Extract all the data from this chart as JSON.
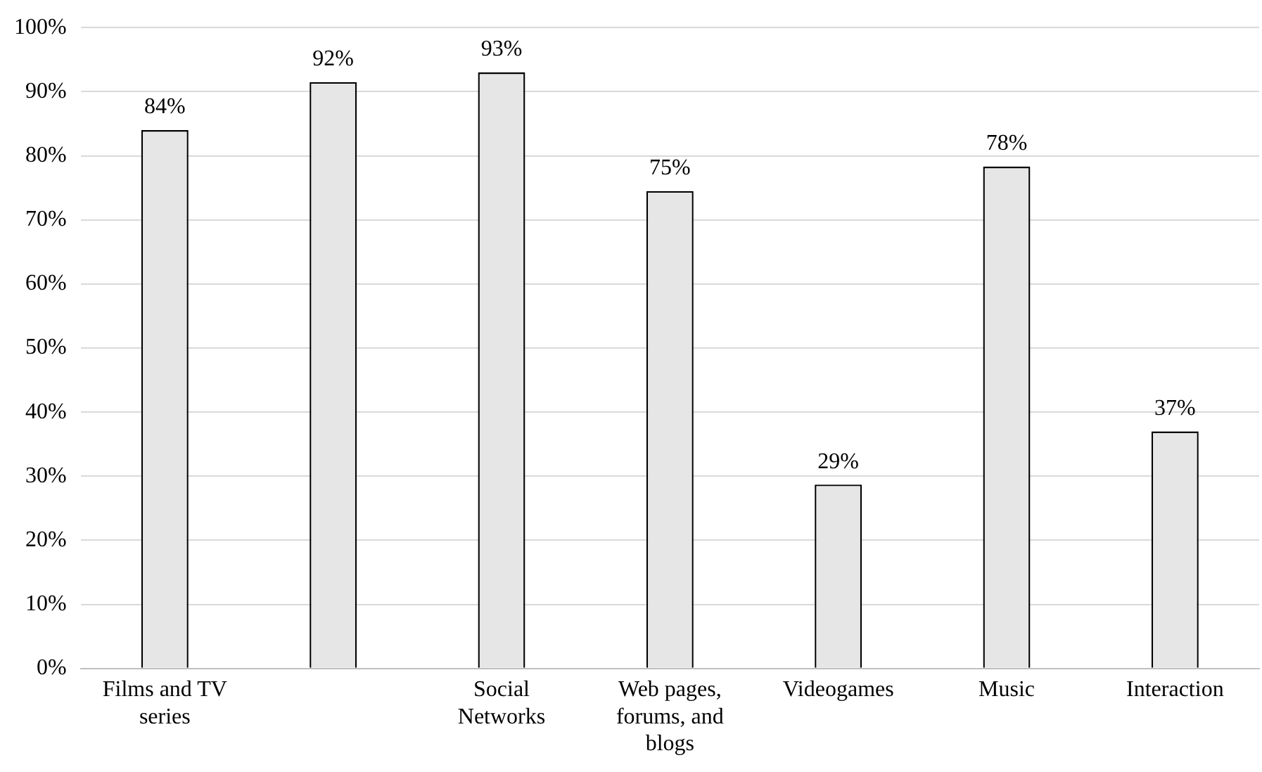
{
  "chart_data": {
    "type": "bar",
    "categories": [
      "Films and TV series",
      null,
      "Social Networks",
      "Web pages, forums, and blogs",
      "Videogames",
      "Music",
      "Interaction"
    ],
    "values": [
      84,
      91.5,
      93,
      74.5,
      28.7,
      78.3,
      37
    ],
    "value_labels": [
      "84%",
      "92%",
      "93%",
      "75%",
      "29%",
      "78%",
      "37%"
    ],
    "color": "#e7e6e6",
    "ylim": [
      0,
      100
    ],
    "yticks": [
      {
        "value": 0,
        "label": "0%"
      },
      {
        "value": 10,
        "label": "10%"
      },
      {
        "value": 20,
        "label": "20%"
      },
      {
        "value": 30,
        "label": "30%"
      },
      {
        "value": 40,
        "label": "40%"
      },
      {
        "value": 50,
        "label": "50%"
      },
      {
        "value": 60,
        "label": "60%"
      },
      {
        "value": 70,
        "label": "70%"
      },
      {
        "value": 80,
        "label": "80%"
      },
      {
        "value": 90,
        "label": "90%"
      },
      {
        "value": 100,
        "label": "100%"
      }
    ],
    "grid": "y",
    "legend": false
  }
}
